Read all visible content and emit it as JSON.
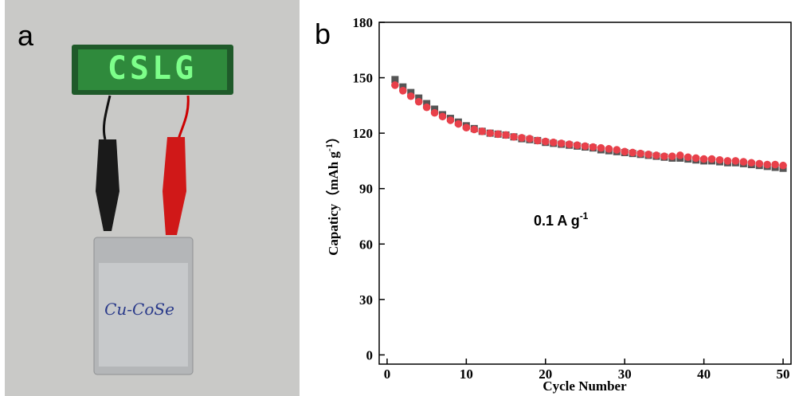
{
  "panel_labels": [
    "a",
    "b"
  ],
  "photo": {
    "led_text": "CSLG",
    "battery_label": "Cu-CoSe"
  },
  "chart_data": {
    "type": "scatter",
    "xlabel": "Cycle Number",
    "ylabel": "Capaticy（mAh g",
    "ylabel_sup": "-1",
    "ylabel_end": "）",
    "annotation": {
      "text": "0.1 A g",
      "sup": "-1"
    },
    "xlim": [
      -1,
      51
    ],
    "xticks": [
      0,
      10,
      20,
      30,
      40,
      50
    ],
    "ylim": [
      -5,
      180
    ],
    "yticks": [
      0,
      30,
      60,
      90,
      120,
      150,
      180
    ],
    "x": [
      1,
      2,
      3,
      4,
      5,
      6,
      7,
      8,
      9,
      10,
      11,
      12,
      13,
      14,
      15,
      16,
      17,
      18,
      19,
      20,
      21,
      22,
      23,
      24,
      25,
      26,
      27,
      28,
      29,
      30,
      31,
      32,
      33,
      34,
      35,
      36,
      37,
      38,
      39,
      40,
      41,
      42,
      43,
      44,
      45,
      46,
      47,
      48,
      49,
      50
    ],
    "series": [
      {
        "color": "#555555",
        "marker": "square",
        "values": [
          149,
          145,
          142,
          139,
          136,
          133,
          130,
          128,
          126,
          124,
          122.5,
          121,
          120,
          119.5,
          119,
          118,
          117,
          116.5,
          116,
          115,
          114.5,
          114,
          113.5,
          113,
          112.5,
          112,
          111,
          110.5,
          110,
          109.5,
          109,
          108.5,
          108,
          107.5,
          107,
          106.5,
          106.5,
          106,
          105.5,
          105,
          105,
          104.5,
          104,
          104,
          103.5,
          103,
          102.5,
          102,
          101.5,
          101
        ]
      },
      {
        "color": "#e8404a",
        "marker": "circle",
        "values": [
          146,
          143,
          140,
          137,
          134,
          131,
          129,
          127,
          125,
          123,
          122,
          121,
          120,
          119.5,
          119,
          118,
          117.5,
          117,
          116,
          115.5,
          115,
          114.5,
          114,
          113.5,
          113,
          112.5,
          112,
          111.5,
          111,
          110,
          109.5,
          109,
          108.5,
          108,
          107.5,
          107.5,
          108,
          107,
          106.5,
          106,
          106,
          105.5,
          105,
          105,
          104.5,
          104,
          103.5,
          103,
          103,
          102.5
        ]
      }
    ]
  }
}
